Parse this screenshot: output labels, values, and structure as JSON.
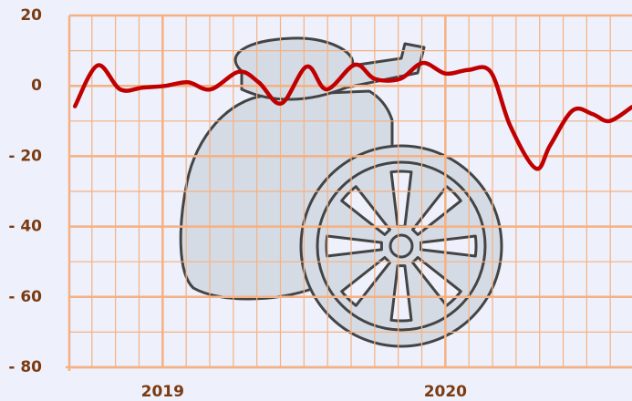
{
  "chart_data": {
    "type": "line",
    "x": [
      2018.69,
      2018.77,
      2018.85,
      2018.93,
      2019.01,
      2019.09,
      2019.17,
      2019.27,
      2019.34,
      2019.42,
      2019.51,
      2019.58,
      2019.68,
      2019.75,
      2019.84,
      2019.92,
      2020.0,
      2020.08,
      2020.16,
      2020.23,
      2020.32,
      2020.37,
      2020.45,
      2020.52,
      2020.58,
      2020.66
    ],
    "series": [
      {
        "name": null,
        "color": "#c00000",
        "values": [
          -5.8,
          5.8,
          -1,
          -0.5,
          0,
          1,
          -1,
          4,
          1,
          -5,
          5.5,
          -1,
          6,
          2,
          2,
          6.5,
          3.5,
          4.5,
          4,
          -11.5,
          -23.5,
          -17,
          -7,
          -8,
          -10,
          -6
        ]
      }
    ],
    "xlim": [
      2018.67,
      2020.66
    ],
    "xticks": [
      2019,
      2020
    ],
    "ylim": [
      -80,
      20
    ],
    "yticks": [
      {
        "value": 20,
        "label": "20"
      },
      {
        "value": 0,
        "label": "0"
      },
      {
        "value": -20,
        "label": "- 20"
      },
      {
        "value": -40,
        "label": "- 40"
      },
      {
        "value": -60,
        "label": "- 60"
      },
      {
        "value": -80,
        "label": "- 80"
      }
    ],
    "grid": true
  }
}
